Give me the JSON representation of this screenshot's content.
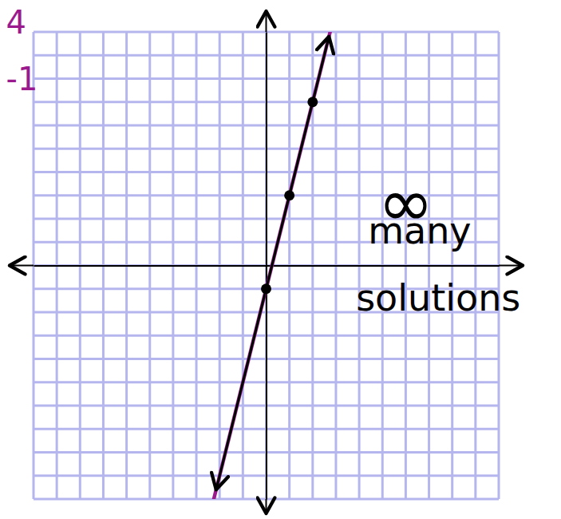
{
  "chart_data": {
    "type": "line",
    "xlim": [
      -10,
      10
    ],
    "ylim": [
      -10,
      10
    ],
    "xticks": [
      -10,
      -9,
      -8,
      -7,
      -6,
      -5,
      -4,
      -3,
      -2,
      -1,
      0,
      1,
      2,
      3,
      4,
      5,
      6,
      7,
      8,
      9,
      10
    ],
    "yticks": [
      -10,
      -9,
      -8,
      -7,
      -6,
      -5,
      -4,
      -3,
      -2,
      -1,
      0,
      1,
      2,
      3,
      4,
      5,
      6,
      7,
      8,
      9,
      10
    ],
    "grid": true,
    "tick_labels": false,
    "series": [
      {
        "color": "#9b1b8e",
        "x": [
          -2.25,
          2.75
        ],
        "values": [
          -10,
          10
        ]
      },
      {
        "color": "#000000",
        "x": [
          -2.15,
          2.7
        ],
        "values": [
          -9.6,
          9.8
        ],
        "marker": "arrow"
      },
      {
        "type": "scatter",
        "color": "#000000",
        "x": [
          0,
          1,
          2
        ],
        "values": [
          -1,
          3,
          7
        ],
        "marker": "circle"
      }
    ],
    "annotations": [
      {
        "text": "∞",
        "x": 6.0,
        "y": 2.7
      },
      {
        "text": "many",
        "x": 6.6,
        "y": 1.5
      },
      {
        "text": "solutions",
        "x": 7.4,
        "y": -1.4
      },
      {
        "text": "4",
        "x": -10.75,
        "y": 10.4,
        "color": "#9b1b8e"
      },
      {
        "text": "-1",
        "x": -10.5,
        "y": 8.0,
        "color": "#9b1b8e"
      }
    ]
  }
}
